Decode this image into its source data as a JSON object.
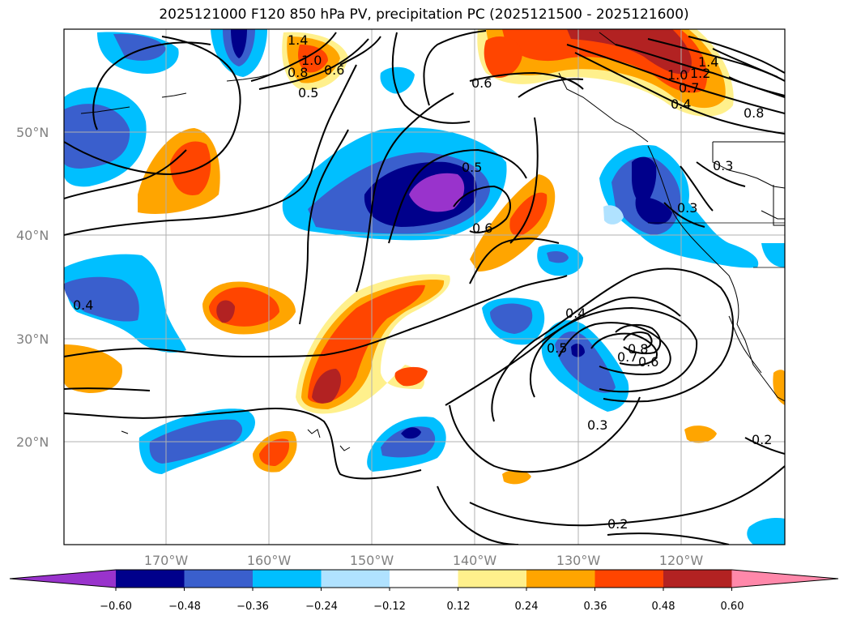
{
  "title": "2025121000 F120 850 hPa PV, precipitation PC (2025121500 - 2025121600)",
  "map": {
    "lat_labels": [
      "50°N",
      "40°N",
      "30°N",
      "20°N"
    ],
    "lon_labels": [
      "170°W",
      "160°W",
      "150°W",
      "140°W",
      "130°W",
      "120°W"
    ],
    "extent": {
      "lon_min": -180,
      "lon_max": -110,
      "lat_min": 10,
      "lat_max": 60
    },
    "gridlines": true,
    "pv_contour_labels": [
      "1.4",
      "1.2",
      "1.0",
      "0.8",
      "0.7",
      "0.6",
      "0.5",
      "0.4",
      "0.3",
      "0.2"
    ]
  },
  "colorbar": {
    "ticks": [
      "−0.60",
      "−0.48",
      "−0.36",
      "−0.24",
      "−0.12",
      "0.12",
      "0.24",
      "0.36",
      "0.48",
      "0.60"
    ],
    "colors": [
      "#9933cc",
      "#00008b",
      "#3a5fcd",
      "#00bfff",
      "#b0e2ff",
      "#ffffff",
      "#fff08c",
      "#ffa500",
      "#ff4500",
      "#b22222",
      "#ff88aa"
    ],
    "extend": "both"
  }
}
